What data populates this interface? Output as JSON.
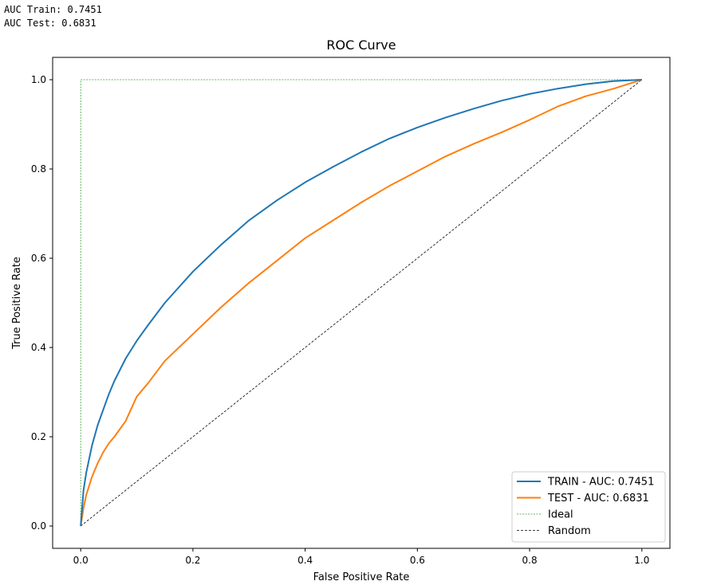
{
  "console": {
    "lines": [
      "AUC Train: 0.7451",
      "AUC Test: 0.6831"
    ]
  },
  "chart_data": {
    "type": "line",
    "title": "ROC Curve",
    "xlabel": "False Positive Rate",
    "ylabel": "True Positive Rate",
    "xlim": [
      -0.05,
      1.05
    ],
    "ylim": [
      -0.05,
      1.05
    ],
    "xticks": [
      "0.0",
      "0.2",
      "0.4",
      "0.6",
      "0.8",
      "1.0"
    ],
    "yticks": [
      "0.0",
      "0.2",
      "0.4",
      "0.6",
      "0.8",
      "1.0"
    ],
    "grid": false,
    "legend": "lower-right",
    "series": [
      {
        "name": "TRAIN - AUC: 0.7451",
        "color": "#1f77b4",
        "style": "solid",
        "x": [
          0,
          0.005,
          0.01,
          0.02,
          0.03,
          0.04,
          0.05,
          0.06,
          0.08,
          0.1,
          0.12,
          0.15,
          0.2,
          0.25,
          0.3,
          0.35,
          0.4,
          0.45,
          0.5,
          0.55,
          0.6,
          0.65,
          0.7,
          0.75,
          0.8,
          0.85,
          0.9,
          0.95,
          1.0
        ],
        "y": [
          0,
          0.08,
          0.12,
          0.18,
          0.225,
          0.26,
          0.295,
          0.325,
          0.375,
          0.415,
          0.45,
          0.5,
          0.57,
          0.63,
          0.685,
          0.73,
          0.77,
          0.805,
          0.838,
          0.868,
          0.893,
          0.915,
          0.935,
          0.953,
          0.968,
          0.98,
          0.99,
          0.997,
          1.0
        ]
      },
      {
        "name": "TEST - AUC: 0.6831",
        "color": "#ff7f0e",
        "style": "solid",
        "x": [
          0,
          0.005,
          0.01,
          0.02,
          0.03,
          0.04,
          0.05,
          0.06,
          0.08,
          0.1,
          0.12,
          0.15,
          0.2,
          0.25,
          0.3,
          0.35,
          0.4,
          0.45,
          0.5,
          0.55,
          0.6,
          0.65,
          0.7,
          0.75,
          0.8,
          0.85,
          0.9,
          0.95,
          1.0
        ],
        "y": [
          0,
          0.04,
          0.07,
          0.11,
          0.14,
          0.165,
          0.185,
          0.2,
          0.235,
          0.29,
          0.32,
          0.37,
          0.43,
          0.49,
          0.545,
          0.595,
          0.645,
          0.685,
          0.725,
          0.762,
          0.795,
          0.828,
          0.856,
          0.882,
          0.91,
          0.94,
          0.963,
          0.98,
          1.0
        ]
      },
      {
        "name": "Ideal",
        "color": "#2ca02c",
        "style": "dotted",
        "x": [
          0,
          0,
          1
        ],
        "y": [
          0,
          1,
          1
        ]
      },
      {
        "name": "Random",
        "color": "#000000",
        "style": "dashed",
        "x": [
          0,
          1
        ],
        "y": [
          0,
          1
        ]
      }
    ]
  }
}
